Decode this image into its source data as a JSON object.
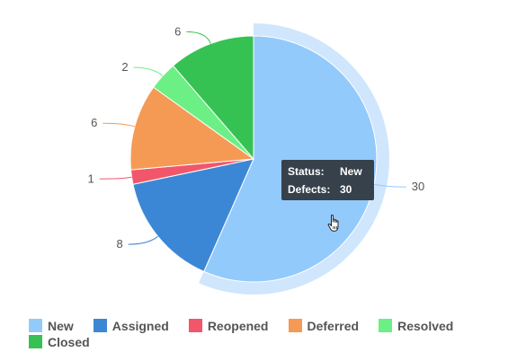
{
  "chart_data": {
    "type": "pie",
    "slices": [
      {
        "label": "New",
        "value": 30,
        "color": "#93cafc"
      },
      {
        "label": "Assigned",
        "value": 8,
        "color": "#3c87d5"
      },
      {
        "label": "Reopened",
        "value": 1,
        "color": "#f2566b"
      },
      {
        "label": "Deferred",
        "value": 6,
        "color": "#f59a54"
      },
      {
        "label": "Resolved",
        "value": 2,
        "color": "#6cef85"
      },
      {
        "label": "Closed",
        "value": 6,
        "color": "#36c252"
      }
    ],
    "hovered_slice": "New",
    "legend_position": "bottom-left"
  },
  "tooltip": {
    "status_label": "Status:",
    "status_value": "New",
    "defects_label": "Defects:",
    "defects_value": "30"
  },
  "colors": {
    "tooltip_background": "#37414b",
    "hover_halo": "#cfe6fd",
    "label_text": "#555555"
  },
  "icons": {
    "cursor": "hand-pointer-icon"
  }
}
